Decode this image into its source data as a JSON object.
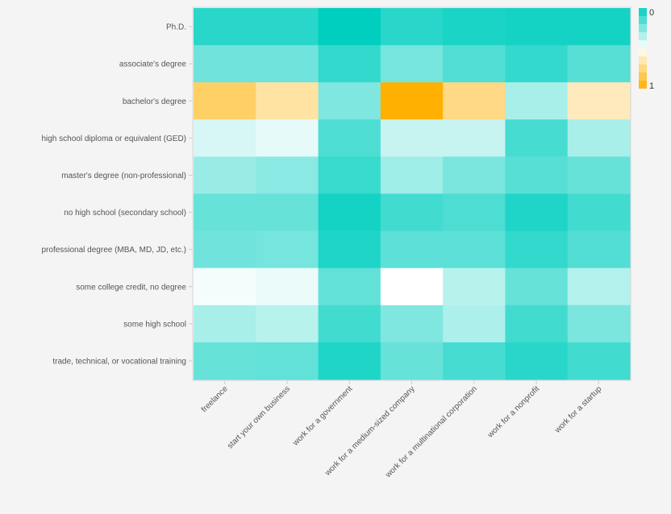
{
  "chart_data": {
    "type": "heatmap",
    "title": "",
    "xlabel": "",
    "ylabel": "",
    "x_categories": [
      "freelance",
      "start your own business",
      "work for a government",
      "work for a medium-sized company",
      "work for a multinational corporation",
      "work for a nonprofit",
      "work for a startup"
    ],
    "y_categories": [
      "Ph.D.",
      "associate's degree",
      "bachelor's degree",
      "high school diploma or equivalent (GED)",
      "master's degree (non-professional)",
      "no high school (secondary school)",
      "professional degree (MBA, MD, JD, etc.)",
      "some college credit, no degree",
      "some high school",
      "trade, technical, or vocational training"
    ],
    "values": [
      [
        0.08,
        0.08,
        0.0,
        0.08,
        0.05,
        0.04,
        0.04
      ],
      [
        0.22,
        0.22,
        0.1,
        0.23,
        0.16,
        0.1,
        0.17
      ],
      [
        0.8,
        0.68,
        0.25,
        1.0,
        0.74,
        0.33,
        0.63
      ],
      [
        0.42,
        0.45,
        0.15,
        0.39,
        0.39,
        0.14,
        0.33
      ],
      [
        0.3,
        0.27,
        0.11,
        0.31,
        0.24,
        0.17,
        0.2
      ],
      [
        0.2,
        0.2,
        0.04,
        0.13,
        0.15,
        0.06,
        0.13
      ],
      [
        0.22,
        0.23,
        0.06,
        0.18,
        0.18,
        0.1,
        0.16
      ],
      [
        0.48,
        0.46,
        0.19,
        0.5,
        0.36,
        0.2,
        0.35
      ],
      [
        0.33,
        0.36,
        0.13,
        0.25,
        0.34,
        0.13,
        0.24
      ],
      [
        0.2,
        0.19,
        0.06,
        0.2,
        0.14,
        0.08,
        0.13
      ]
    ],
    "color_scale": {
      "min": 0,
      "max": 1,
      "low_color": "#00cfc0",
      "mid_color": "#ffffff",
      "high_color": "#ffb000",
      "bins": 10
    },
    "legend": {
      "position": "top-right",
      "min_label": "0",
      "max_label": "1"
    },
    "grid": false
  },
  "colors": {
    "background": "#f4f4f4",
    "axis": "#cccccc",
    "tick_text": "#555555"
  }
}
